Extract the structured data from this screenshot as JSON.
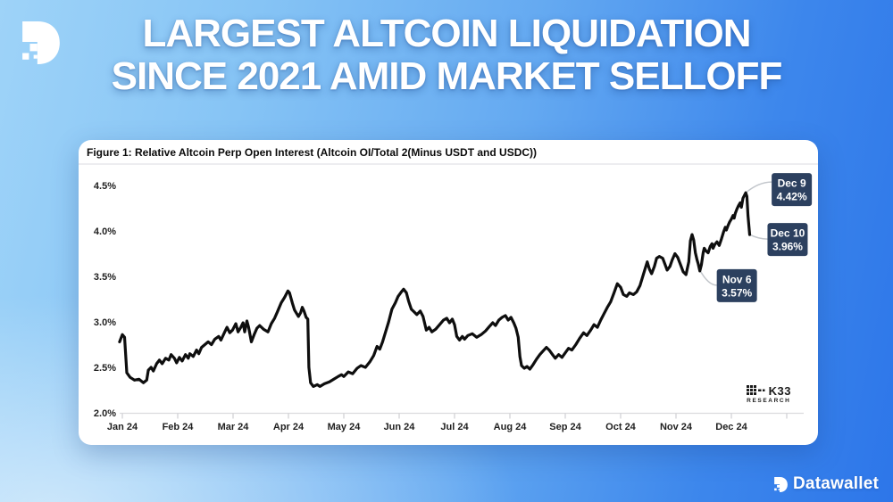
{
  "poster": {
    "title_line1": "LARGEST ALTCOIN LIQUIDATION",
    "title_line2": "SINCE 2021 AMID MARKET SELLOFF"
  },
  "branding": {
    "wordmark": "Datawallet"
  },
  "figure": {
    "caption": "Figure 1: Relative Altcoin Perp Open Interest (Altcoin OI/Total 2(Minus USDT and USDC))",
    "source_name": "K33",
    "source_sub": "RESEARCH"
  },
  "colors": {
    "background_light": "#9ed3f8",
    "background_deep": "#2d76e9",
    "card_bg": "#ffffff",
    "line": "#0e0e0e",
    "annotation_bg": "#2c405f",
    "annotation_text": "#ffffff",
    "connector": "#c2c6cb",
    "axis_text": "#1e1e1e",
    "title_text": "#ffffff"
  },
  "chart_data": {
    "type": "line",
    "title": "Figure 1: Relative Altcoin Perp Open Interest (Altcoin OI/Total 2(Minus USDT and USDC))",
    "xlabel": "",
    "ylabel": "",
    "y_unit": "%",
    "ylim": [
      2.0,
      4.5
    ],
    "grid": false,
    "legend_position": "none",
    "line_color": "#0e0e0e",
    "x_tick_labels": [
      "Jan 24",
      "Feb 24",
      "Mar 24",
      "Apr 24",
      "May 24",
      "Jun 24",
      "Jul 24",
      "Aug 24",
      "Sep 24",
      "Oct 24",
      "Nov 24",
      "Dec 24"
    ],
    "y_tick_labels": [
      "4.5%",
      "4.0%",
      "3.5%",
      "3.0%",
      "2.5%",
      "2.0%"
    ],
    "y_ticks": [
      4.5,
      4.0,
      3.5,
      3.0,
      2.5,
      2.0
    ],
    "series": [
      {
        "name": "Relative Altcoin Perp Open Interest",
        "x_unit": "months since Jan 24 tick",
        "points": [
          [
            -0.05,
            2.78
          ],
          [
            0.0,
            2.86
          ],
          [
            0.04,
            2.83
          ],
          [
            0.08,
            2.44
          ],
          [
            0.14,
            2.39
          ],
          [
            0.22,
            2.36
          ],
          [
            0.3,
            2.37
          ],
          [
            0.38,
            2.33
          ],
          [
            0.44,
            2.36
          ],
          [
            0.47,
            2.47
          ],
          [
            0.52,
            2.5
          ],
          [
            0.56,
            2.46
          ],
          [
            0.62,
            2.54
          ],
          [
            0.67,
            2.58
          ],
          [
            0.72,
            2.54
          ],
          [
            0.78,
            2.6
          ],
          [
            0.84,
            2.58
          ],
          [
            0.88,
            2.64
          ],
          [
            0.94,
            2.6
          ],
          [
            0.98,
            2.55
          ],
          [
            1.03,
            2.61
          ],
          [
            1.08,
            2.57
          ],
          [
            1.14,
            2.64
          ],
          [
            1.19,
            2.6
          ],
          [
            1.22,
            2.65
          ],
          [
            1.28,
            2.62
          ],
          [
            1.34,
            2.69
          ],
          [
            1.38,
            2.65
          ],
          [
            1.43,
            2.72
          ],
          [
            1.49,
            2.75
          ],
          [
            1.55,
            2.78
          ],
          [
            1.61,
            2.75
          ],
          [
            1.67,
            2.81
          ],
          [
            1.74,
            2.84
          ],
          [
            1.78,
            2.8
          ],
          [
            1.85,
            2.89
          ],
          [
            1.89,
            2.94
          ],
          [
            1.94,
            2.88
          ],
          [
            1.99,
            2.91
          ],
          [
            2.05,
            2.98
          ],
          [
            2.09,
            2.89
          ],
          [
            2.14,
            2.94
          ],
          [
            2.18,
            2.99
          ],
          [
            2.21,
            2.89
          ],
          [
            2.25,
            3.01
          ],
          [
            2.28,
            2.94
          ],
          [
            2.33,
            2.78
          ],
          [
            2.38,
            2.86
          ],
          [
            2.43,
            2.93
          ],
          [
            2.48,
            2.96
          ],
          [
            2.55,
            2.92
          ],
          [
            2.63,
            2.89
          ],
          [
            2.69,
            2.98
          ],
          [
            2.75,
            3.04
          ],
          [
            2.8,
            3.11
          ],
          [
            2.87,
            3.21
          ],
          [
            2.93,
            3.27
          ],
          [
            2.99,
            3.34
          ],
          [
            3.02,
            3.32
          ],
          [
            3.07,
            3.21
          ],
          [
            3.11,
            3.13
          ],
          [
            3.14,
            3.1
          ],
          [
            3.18,
            3.06
          ],
          [
            3.22,
            3.1
          ],
          [
            3.25,
            3.16
          ],
          [
            3.28,
            3.12
          ],
          [
            3.32,
            3.05
          ],
          [
            3.35,
            3.03
          ],
          [
            3.37,
            2.5
          ],
          [
            3.4,
            2.33
          ],
          [
            3.45,
            2.29
          ],
          [
            3.52,
            2.31
          ],
          [
            3.57,
            2.29
          ],
          [
            3.65,
            2.32
          ],
          [
            3.74,
            2.34
          ],
          [
            3.82,
            2.37
          ],
          [
            3.9,
            2.4
          ],
          [
            3.96,
            2.42
          ],
          [
            4.0,
            2.4
          ],
          [
            4.08,
            2.45
          ],
          [
            4.16,
            2.43
          ],
          [
            4.24,
            2.49
          ],
          [
            4.31,
            2.52
          ],
          [
            4.39,
            2.5
          ],
          [
            4.47,
            2.56
          ],
          [
            4.54,
            2.63
          ],
          [
            4.6,
            2.73
          ],
          [
            4.65,
            2.7
          ],
          [
            4.7,
            2.78
          ],
          [
            4.75,
            2.88
          ],
          [
            4.81,
            3.0
          ],
          [
            4.87,
            3.14
          ],
          [
            4.93,
            3.21
          ],
          [
            4.98,
            3.28
          ],
          [
            5.04,
            3.33
          ],
          [
            5.08,
            3.36
          ],
          [
            5.13,
            3.32
          ],
          [
            5.17,
            3.23
          ],
          [
            5.22,
            3.14
          ],
          [
            5.27,
            3.11
          ],
          [
            5.32,
            3.08
          ],
          [
            5.38,
            3.12
          ],
          [
            5.43,
            3.06
          ],
          [
            5.49,
            2.91
          ],
          [
            5.54,
            2.94
          ],
          [
            5.59,
            2.89
          ],
          [
            5.66,
            2.92
          ],
          [
            5.73,
            2.97
          ],
          [
            5.8,
            3.02
          ],
          [
            5.86,
            3.04
          ],
          [
            5.91,
            2.99
          ],
          [
            5.96,
            3.03
          ],
          [
            6.0,
            2.97
          ],
          [
            6.04,
            2.84
          ],
          [
            6.09,
            2.8
          ],
          [
            6.14,
            2.84
          ],
          [
            6.18,
            2.81
          ],
          [
            6.24,
            2.85
          ],
          [
            6.32,
            2.87
          ],
          [
            6.4,
            2.83
          ],
          [
            6.48,
            2.86
          ],
          [
            6.56,
            2.9
          ],
          [
            6.63,
            2.95
          ],
          [
            6.69,
            2.99
          ],
          [
            6.74,
            2.96
          ],
          [
            6.8,
            3.02
          ],
          [
            6.86,
            3.05
          ],
          [
            6.92,
            3.07
          ],
          [
            6.97,
            3.02
          ],
          [
            7.02,
            3.05
          ],
          [
            7.07,
            2.99
          ],
          [
            7.11,
            2.93
          ],
          [
            7.15,
            2.83
          ],
          [
            7.18,
            2.62
          ],
          [
            7.21,
            2.52
          ],
          [
            7.26,
            2.49
          ],
          [
            7.31,
            2.51
          ],
          [
            7.36,
            2.48
          ],
          [
            7.42,
            2.53
          ],
          [
            7.48,
            2.59
          ],
          [
            7.54,
            2.64
          ],
          [
            7.6,
            2.68
          ],
          [
            7.66,
            2.72
          ],
          [
            7.71,
            2.69
          ],
          [
            7.77,
            2.64
          ],
          [
            7.82,
            2.6
          ],
          [
            7.88,
            2.64
          ],
          [
            7.94,
            2.61
          ],
          [
            8.0,
            2.66
          ],
          [
            8.06,
            2.71
          ],
          [
            8.12,
            2.69
          ],
          [
            8.19,
            2.75
          ],
          [
            8.26,
            2.82
          ],
          [
            8.33,
            2.88
          ],
          [
            8.39,
            2.85
          ],
          [
            8.46,
            2.91
          ],
          [
            8.52,
            2.97
          ],
          [
            8.58,
            2.94
          ],
          [
            8.64,
            3.02
          ],
          [
            8.7,
            3.09
          ],
          [
            8.76,
            3.16
          ],
          [
            8.82,
            3.22
          ],
          [
            8.88,
            3.32
          ],
          [
            8.94,
            3.42
          ],
          [
            9.0,
            3.38
          ],
          [
            9.05,
            3.3
          ],
          [
            9.11,
            3.28
          ],
          [
            9.16,
            3.32
          ],
          [
            9.23,
            3.3
          ],
          [
            9.29,
            3.33
          ],
          [
            9.35,
            3.4
          ],
          [
            9.4,
            3.5
          ],
          [
            9.45,
            3.6
          ],
          [
            9.48,
            3.66
          ],
          [
            9.52,
            3.58
          ],
          [
            9.56,
            3.53
          ],
          [
            9.61,
            3.61
          ],
          [
            9.65,
            3.7
          ],
          [
            9.7,
            3.72
          ],
          [
            9.76,
            3.7
          ],
          [
            9.81,
            3.62
          ],
          [
            9.84,
            3.57
          ],
          [
            9.89,
            3.61
          ],
          [
            9.93,
            3.68
          ],
          [
            9.98,
            3.75
          ],
          [
            10.03,
            3.71
          ],
          [
            10.08,
            3.63
          ],
          [
            10.13,
            3.55
          ],
          [
            10.18,
            3.52
          ],
          [
            10.23,
            3.66
          ],
          [
            10.26,
            3.89
          ],
          [
            10.29,
            3.96
          ],
          [
            10.32,
            3.9
          ],
          [
            10.35,
            3.76
          ],
          [
            10.38,
            3.68
          ],
          [
            10.4,
            3.64
          ],
          [
            10.43,
            3.56
          ],
          [
            10.46,
            3.63
          ],
          [
            10.49,
            3.76
          ],
          [
            10.51,
            3.81
          ],
          [
            10.54,
            3.78
          ],
          [
            10.58,
            3.76
          ],
          [
            10.62,
            3.83
          ],
          [
            10.65,
            3.86
          ],
          [
            10.67,
            3.81
          ],
          [
            10.7,
            3.85
          ],
          [
            10.74,
            3.88
          ],
          [
            10.78,
            3.84
          ],
          [
            10.82,
            3.91
          ],
          [
            10.86,
            3.99
          ],
          [
            10.89,
            4.04
          ],
          [
            10.91,
            4.01
          ],
          [
            10.94,
            4.06
          ],
          [
            10.97,
            4.1
          ],
          [
            11.0,
            4.13
          ],
          [
            11.03,
            4.17
          ],
          [
            11.05,
            4.14
          ],
          [
            11.07,
            4.19
          ],
          [
            11.1,
            4.24
          ],
          [
            11.13,
            4.28
          ],
          [
            11.16,
            4.31
          ],
          [
            11.18,
            4.26
          ],
          [
            11.21,
            4.36
          ],
          [
            11.26,
            4.42
          ],
          [
            11.28,
            4.38
          ],
          [
            11.3,
            4.17
          ],
          [
            11.33,
            3.96
          ]
        ]
      }
    ],
    "annotations": [
      {
        "label": "Dec 9",
        "value": "4.42%",
        "t": 11.26,
        "v": 4.42
      },
      {
        "label": "Dec 10",
        "value": "3.96%",
        "t": 11.33,
        "v": 3.96
      },
      {
        "label": "Nov 6",
        "value": "3.57%",
        "t": 10.43,
        "v": 3.57
      }
    ]
  }
}
